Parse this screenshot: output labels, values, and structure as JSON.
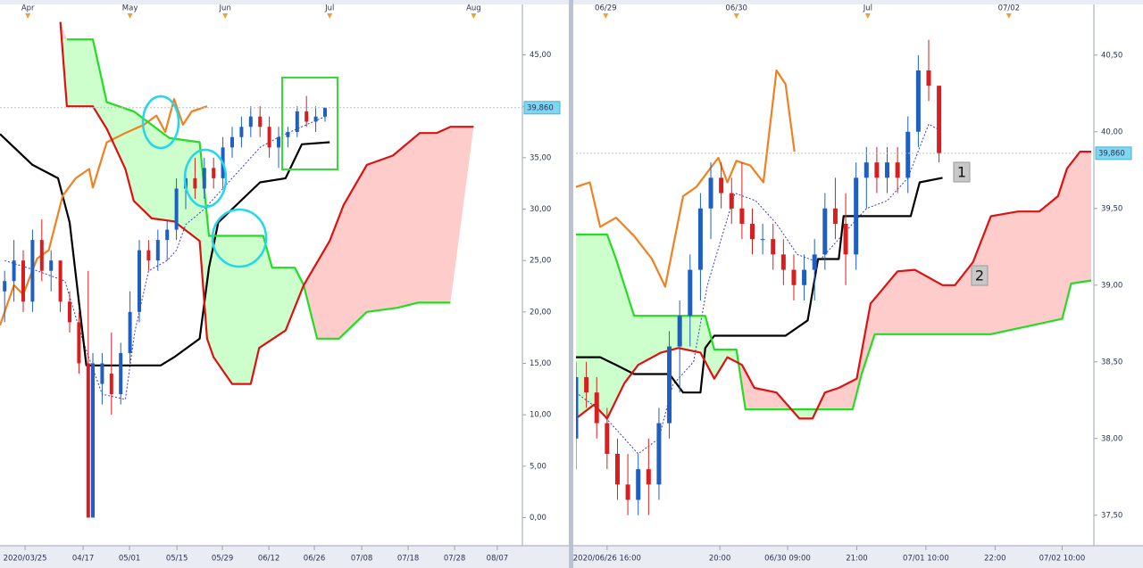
{
  "chart_data": [
    {
      "type": "ichimoku",
      "xlim": [
        0,
        112.5
      ],
      "ylim": [
        -2.3,
        49.9
      ],
      "yticks": [
        {
          "value": 0,
          "label": "0,00"
        },
        {
          "value": 5,
          "label": "5,00"
        },
        {
          "value": 10,
          "label": "10,00"
        },
        {
          "value": 15,
          "label": "15,00"
        },
        {
          "value": 20,
          "label": "20,00"
        },
        {
          "value": 25,
          "label": "25,00"
        },
        {
          "value": 30,
          "label": "30,00"
        },
        {
          "value": 35,
          "label": "35,00"
        },
        {
          "value": 40,
          "label": "40,00"
        },
        {
          "value": 45,
          "label": "45,00"
        }
      ],
      "xticks": [
        {
          "value": 5.4,
          "label": "2020/03/25"
        },
        {
          "value": 17.9,
          "label": "04/17"
        },
        {
          "value": 27.9,
          "label": "05/01"
        },
        {
          "value": 38.1,
          "label": "05/15"
        },
        {
          "value": 47.9,
          "label": "05/29"
        },
        {
          "value": 57.9,
          "label": "06/12"
        },
        {
          "value": 67.7,
          "label": "06/26"
        },
        {
          "value": 77.9,
          "label": "07/08"
        },
        {
          "value": 87.9,
          "label": "07/18"
        },
        {
          "value": 97.9,
          "label": "07/28"
        },
        {
          "value": 107.1,
          "label": "08/07"
        }
      ],
      "x2ticks": [
        {
          "value": 6,
          "label": "Apr"
        },
        {
          "value": 28,
          "label": "May"
        },
        {
          "value": 48.5,
          "label": "Jun"
        },
        {
          "value": 71,
          "label": "Jul"
        },
        {
          "value": 102,
          "label": "Aug"
        }
      ],
      "last_price": {
        "value": 39.86,
        "label": "39,860"
      },
      "up_color": "#1f5fc4",
      "down_color": "#d81e1e",
      "cloud": {
        "bull_color": "#ccffcc",
        "bear_color": "#ffcccc"
      },
      "candles": {
        "x": [
          1,
          3,
          5,
          7,
          9,
          11,
          13,
          15,
          17,
          19,
          20,
          22,
          24,
          26,
          28,
          30,
          32,
          34,
          36,
          38,
          40,
          42,
          44,
          46,
          48,
          50,
          52,
          54,
          56,
          58,
          60,
          62,
          64,
          66,
          68,
          70
        ],
        "open": [
          22,
          23,
          25,
          21,
          27,
          24,
          25,
          21,
          19,
          15,
          0,
          13,
          14,
          12,
          16,
          20,
          26,
          25,
          27,
          28,
          32,
          33,
          32,
          34,
          33,
          36,
          37,
          38,
          39,
          38,
          36,
          37,
          37.5,
          39.5,
          38.5,
          39
        ],
        "high": [
          24,
          27,
          26,
          28,
          29,
          26,
          25,
          22,
          20,
          24,
          16,
          16,
          18,
          17,
          22,
          27,
          27,
          28,
          29,
          33,
          34,
          35,
          35,
          35,
          37,
          38,
          39,
          40,
          40,
          39,
          38,
          38,
          40,
          41,
          40,
          39.9
        ],
        "low": [
          19,
          21,
          20,
          20,
          23,
          22,
          20,
          18,
          14,
          0,
          0,
          11,
          10,
          11,
          15,
          19,
          24,
          24,
          25,
          27,
          30,
          31,
          31,
          32,
          32,
          35,
          36,
          37,
          37,
          35,
          34,
          36,
          37,
          38,
          37.5,
          38.5
        ],
        "close": [
          23,
          25,
          21,
          27,
          24,
          25,
          21,
          19,
          15,
          0,
          15,
          15,
          12,
          16,
          20,
          26,
          25,
          27,
          28,
          32,
          33,
          32,
          34,
          33,
          36,
          37,
          38,
          39,
          38,
          36,
          37,
          37.5,
          39.5,
          38.5,
          39,
          39.86
        ]
      },
      "series": [
        {
          "color": "#3a3acc",
          "dash": true,
          "x": [
            1,
            8,
            14,
            18,
            22,
            27,
            29,
            32,
            36,
            38,
            40,
            44,
            48,
            52,
            56,
            60,
            64,
            70
          ],
          "values": [
            25,
            24,
            23,
            17,
            12,
            11.5,
            18,
            24,
            25,
            26,
            28.5,
            30,
            32,
            34,
            36,
            37,
            37.8,
            39
          ]
        },
        {
          "color": "#000000",
          "x": [
            0,
            7,
            12.5,
            15,
            18.6,
            34.6,
            37.5,
            43,
            45,
            47,
            56,
            61.5,
            65,
            71
          ],
          "values": [
            37.3,
            34.3,
            33,
            28.7,
            14.8,
            14.8,
            15.6,
            17.4,
            24.3,
            28.7,
            32.6,
            33,
            36.3,
            36.5
          ]
        },
        {
          "color": "#f08020",
          "x": [
            0,
            3,
            5,
            8,
            10.5,
            13.5,
            16.3,
            19.2,
            20,
            23,
            27,
            31,
            33.7,
            35.6,
            37.5,
            39.4,
            41.3,
            44.6
          ],
          "values": [
            18.7,
            22.6,
            21.7,
            25.2,
            26,
            31.3,
            33,
            33.9,
            32.1,
            36.5,
            37.4,
            38.2,
            39.1,
            37.5,
            40.7,
            38.2,
            39.5,
            40
          ]
        },
        {
          "color": "#22dd22",
          "span": "a",
          "x": [
            14.4,
            20,
            23,
            28.8,
            36.5,
            43,
            45,
            56.7,
            58.6,
            63.5,
            65.4,
            68.3,
            73,
            79,
            85.6,
            90,
            97
          ],
          "values": [
            46.5,
            46.5,
            40.4,
            39.5,
            36.9,
            36.5,
            27.4,
            27.4,
            24.3,
            24.3,
            22.6,
            17.4,
            17.4,
            20,
            20.4,
            20.9,
            20.9
          ]
        },
        {
          "color": "#dd1111",
          "span": "b",
          "x": [
            13,
            14.4,
            20,
            23,
            27,
            28.8,
            32.7,
            37.5,
            43,
            44.6,
            46,
            50,
            54,
            55.8,
            61.5,
            65.4,
            71,
            74,
            79,
            84.6,
            90.4,
            94,
            97,
            102
          ],
          "values": [
            48.2,
            40,
            40,
            37.8,
            33.9,
            30.8,
            29.1,
            28.8,
            26.9,
            17.4,
            15.6,
            13,
            13,
            16.5,
            18.2,
            22.6,
            26.9,
            30.4,
            34.3,
            35.2,
            37.4,
            37.4,
            38,
            38
          ]
        }
      ]
    },
    {
      "type": "ichimoku",
      "xlim": [
        0,
        74.5
      ],
      "ylim": [
        37.33,
        40.83
      ],
      "yticks": [
        {
          "value": 37.5,
          "label": "37,50"
        },
        {
          "value": 38,
          "label": "38,00"
        },
        {
          "value": 38.5,
          "label": "38,50"
        },
        {
          "value": 39,
          "label": "39,00"
        },
        {
          "value": 39.5,
          "label": "39,50"
        },
        {
          "value": 40,
          "label": "40,00"
        },
        {
          "value": 40.5,
          "label": "40,50"
        }
      ],
      "xticks": [
        {
          "value": 4.5,
          "label": "2020/06/26 16:00"
        },
        {
          "value": 20.8,
          "label": "20:00"
        },
        {
          "value": 30.6,
          "label": "06/30 09:00"
        },
        {
          "value": 40.6,
          "label": "21:00"
        },
        {
          "value": 50.6,
          "label": "07/01 10:00"
        },
        {
          "value": 60.6,
          "label": "22:00"
        },
        {
          "value": 70.3,
          "label": "07/02 10:00"
        }
      ],
      "x2ticks": [
        {
          "value": 4.3,
          "label": "06/29"
        },
        {
          "value": 23.2,
          "label": "06/30"
        },
        {
          "value": 42.2,
          "label": "Jul"
        },
        {
          "value": 62.6,
          "label": "07/02"
        }
      ],
      "last_price": {
        "value": 39.86,
        "label": "39,860"
      },
      "annotations": [
        "1",
        "2"
      ],
      "up_color": "#1f5fc4",
      "down_color": "#d81e1e",
      "cloud": {
        "bull_color": "#ccffcc",
        "bear_color": "#ffcccc"
      },
      "candles": {
        "x": [
          0,
          1.5,
          3,
          4.5,
          6,
          7.5,
          9,
          10.5,
          12,
          13.5,
          15,
          16.5,
          18,
          19.5,
          21,
          22.5,
          24,
          25.5,
          27,
          28.5,
          30,
          31.5,
          33,
          34.5,
          36,
          37.5,
          39,
          40.5,
          42,
          43.5,
          45,
          46.5,
          48,
          49.5,
          51,
          52.5
        ],
        "open": [
          38.0,
          38.4,
          38.3,
          38.1,
          37.9,
          37.7,
          37.6,
          37.8,
          37.7,
          38.1,
          38.6,
          38.8,
          39.1,
          39.5,
          39.7,
          39.6,
          39.5,
          39.4,
          39.3,
          39.3,
          39.2,
          39.1,
          39.0,
          39.1,
          39.2,
          39.5,
          39.4,
          39.2,
          39.7,
          39.8,
          39.7,
          39.8,
          39.7,
          40.0,
          40.4,
          40.3
        ],
        "high": [
          38.5,
          38.5,
          38.4,
          38.2,
          38.0,
          37.9,
          37.9,
          38.0,
          38.2,
          38.7,
          38.9,
          39.2,
          39.6,
          39.8,
          39.8,
          39.7,
          39.8,
          39.5,
          39.4,
          39.4,
          39.3,
          39.2,
          39.2,
          39.3,
          39.6,
          39.7,
          39.6,
          39.8,
          39.9,
          39.9,
          39.9,
          39.9,
          40.1,
          40.5,
          40.6,
          40.3
        ],
        "low": [
          37.8,
          38.2,
          38.0,
          37.8,
          37.6,
          37.5,
          37.5,
          37.5,
          37.6,
          38.0,
          38.3,
          38.6,
          38.9,
          39.3,
          39.5,
          39.4,
          39.3,
          39.2,
          39.2,
          39.1,
          39.0,
          38.9,
          38.9,
          38.9,
          39.1,
          39.3,
          39.0,
          39.1,
          39.5,
          39.6,
          39.6,
          39.6,
          39.6,
          39.9,
          40.2,
          39.8
        ],
        "close": [
          38.4,
          38.3,
          38.1,
          37.9,
          37.7,
          37.6,
          37.8,
          37.7,
          38.1,
          38.6,
          38.8,
          39.1,
          39.5,
          39.7,
          39.6,
          39.5,
          39.4,
          39.3,
          39.3,
          39.2,
          39.1,
          39.0,
          39.1,
          39.2,
          39.5,
          39.4,
          39.2,
          39.7,
          39.8,
          39.7,
          39.8,
          39.7,
          40.0,
          40.4,
          40.3,
          39.86
        ]
      },
      "series": [
        {
          "color": "#3a3acc",
          "dash": true,
          "x": [
            0,
            3,
            6,
            9,
            12,
            14,
            17,
            19,
            21,
            23,
            26,
            29,
            32,
            35,
            38,
            42,
            45,
            48,
            51,
            53
          ],
          "values": [
            38.3,
            38.2,
            38.05,
            37.9,
            38.0,
            38.35,
            38.5,
            39.0,
            39.3,
            39.6,
            39.55,
            39.4,
            39.2,
            39.15,
            39.3,
            39.5,
            39.55,
            39.7,
            40.05,
            40.0
          ]
        },
        {
          "color": "#000000",
          "x": [
            0,
            3.5,
            5.8,
            8.4,
            13.5,
            15.5,
            18,
            18.7,
            20,
            30.3,
            33.5,
            35,
            38,
            38.7,
            48.4,
            49.7,
            53
          ],
          "values": [
            38.53,
            38.53,
            38.48,
            38.42,
            38.42,
            38.3,
            38.3,
            38.59,
            38.67,
            38.67,
            38.77,
            39.17,
            39.17,
            39.45,
            39.45,
            39.67,
            39.7
          ]
        },
        {
          "color": "#f08020",
          "x": [
            0,
            2,
            3.5,
            5.8,
            8.4,
            11,
            12.9,
            15.5,
            17.4,
            19.4,
            20.6,
            21.9,
            23.2,
            25.2,
            27.1,
            29,
            30.3,
            31.6
          ],
          "values": [
            39.64,
            39.67,
            39.38,
            39.44,
            39.32,
            39.17,
            38.99,
            39.58,
            39.64,
            39.76,
            39.83,
            39.67,
            39.81,
            39.78,
            39.67,
            40.4,
            40.31,
            39.87
          ]
        },
        {
          "color": "#22dd22",
          "span": "a",
          "x": [
            0,
            4.5,
            5.8,
            8.4,
            18.7,
            20,
            23.2,
            24.5,
            40,
            41.3,
            43.2,
            60,
            70.3,
            71.6,
            74.5
          ],
          "values": [
            39.33,
            39.33,
            39.17,
            38.8,
            38.8,
            38.58,
            38.58,
            38.19,
            38.19,
            38.42,
            38.68,
            38.68,
            38.78,
            39.01,
            39.03
          ]
        },
        {
          "color": "#dd1111",
          "span": "b",
          "x": [
            0,
            2.6,
            4.5,
            7,
            9,
            12.3,
            14.8,
            18,
            20,
            21.9,
            24,
            25.8,
            29,
            32.3,
            34.2,
            36,
            38,
            40.6,
            42.6,
            46.5,
            49,
            53,
            54.8,
            57.4,
            60,
            63.9,
            67,
            69.7,
            71,
            72.9,
            74.5
          ],
          "values": [
            38.13,
            38.22,
            38.13,
            38.36,
            38.48,
            38.56,
            38.59,
            38.56,
            38.39,
            38.53,
            38.48,
            38.33,
            38.3,
            38.13,
            38.13,
            38.3,
            38.33,
            38.39,
            38.88,
            39.09,
            39.1,
            39.0,
            39.0,
            39.15,
            39.45,
            39.48,
            39.48,
            39.58,
            39.76,
            39.87,
            39.87
          ]
        }
      ]
    }
  ]
}
